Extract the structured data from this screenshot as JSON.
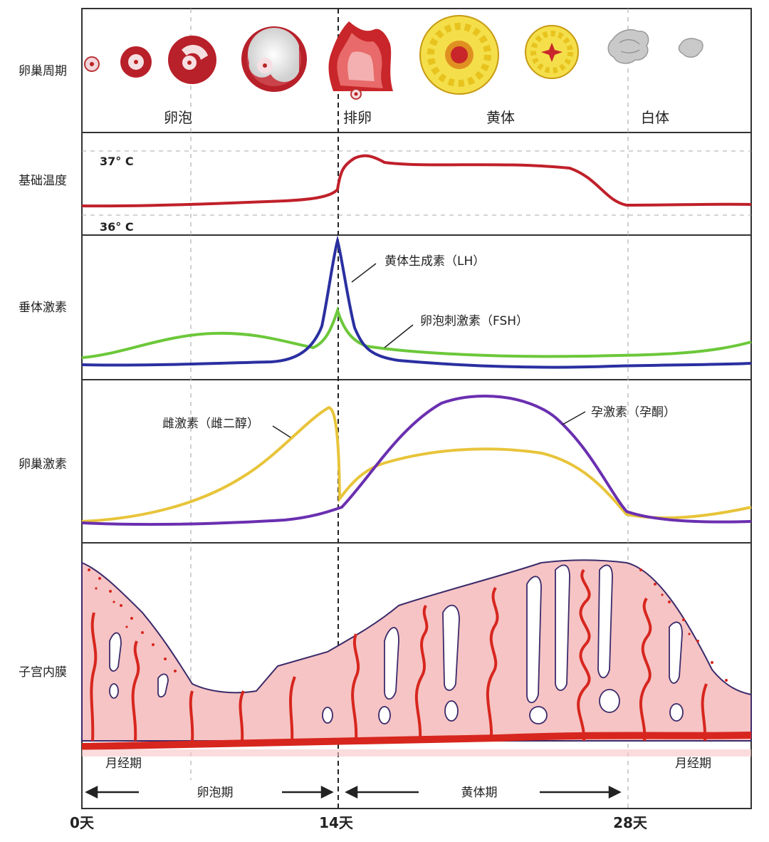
{
  "row_labels": {
    "ovarian_cycle": "卵巢周期",
    "basal_temp": "基础温度",
    "pituitary": "垂体激素",
    "ovarian_hormones": "卵巢激素",
    "endometrium": "子宫内膜"
  },
  "ovary_stages": {
    "follicle": "卵泡",
    "ovulation": "排卵",
    "corpus_luteum": "黄体",
    "corpus_albicans": "白体"
  },
  "temperature": {
    "high_label": "37° C",
    "low_label": "36° C"
  },
  "pituitary_hormones": {
    "lh_label": "黄体生成素（LH）",
    "fsh_label": "卵泡刺激素（FSH）"
  },
  "ovarian_hormones": {
    "estrogen_label": "雌激素（雌二醇）",
    "progesterone_label": "孕激素（孕酮）"
  },
  "phases": {
    "menstrual_left": "月经期",
    "menstrual_right": "月经期",
    "follicular": "卵泡期",
    "luteal": "黄体期"
  },
  "day_axis": {
    "day0": "0天",
    "day14": "14天",
    "day28": "28天"
  },
  "colors": {
    "temperature": "#c0202a",
    "lh": "#2a2fa0",
    "fsh": "#6cc83a",
    "estrogen": "#e8c43a",
    "progesterone": "#6a2fb0",
    "endometrium_fill": "#f6c4c4",
    "vessel": "#d7261e",
    "corpus_luteum": "#f6e35a"
  }
}
